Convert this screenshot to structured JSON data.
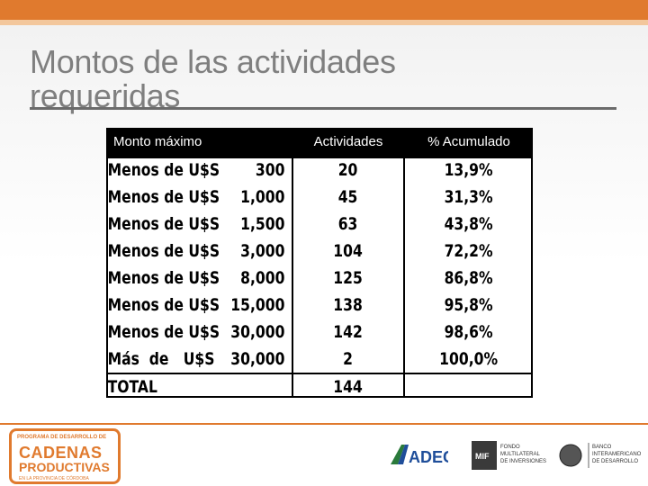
{
  "slide": {
    "title": "Montos de las actividades requeridas"
  },
  "table": {
    "headers": [
      "Monto máximo",
      "Actividades",
      "% Acumulado"
    ],
    "rows": [
      {
        "label": "Menos de U$S",
        "amount": "300",
        "actividades": "20",
        "acumulado": "13,9%"
      },
      {
        "label": "Menos de U$S",
        "amount": "1,000",
        "actividades": "45",
        "acumulado": "31,3%"
      },
      {
        "label": "Menos de U$S",
        "amount": "1,500",
        "actividades": "63",
        "acumulado": "43,8%"
      },
      {
        "label": "Menos de U$S",
        "amount": "3,000",
        "actividades": "104",
        "acumulado": "72,2%"
      },
      {
        "label": "Menos de U$S",
        "amount": "8,000",
        "actividades": "125",
        "acumulado": "86,8%"
      },
      {
        "label": "Menos de U$S",
        "amount": "15,000",
        "actividades": "138",
        "acumulado": "95,8%"
      },
      {
        "label": "Menos de U$S",
        "amount": "30,000",
        "actividades": "142",
        "acumulado": "98,6%"
      },
      {
        "label": "Más  de   U$S",
        "amount": "30,000",
        "actividades": "2",
        "acumulado": "100,0%"
      }
    ],
    "total": {
      "label": "TOTAL",
      "actividades": "144"
    }
  },
  "footer": {
    "cadenas_small": "PROGRAMA DE DESARROLLO DE",
    "cadenas_big1": "CADENAS",
    "cadenas_big2": "PRODUCTIVAS",
    "cadenas_small2": "EN LA PROVINCIA DE CÓRDOBA",
    "adec": "ADEC",
    "fomin_text": "FONDO MULTILATERAL DE INVERSIONES",
    "fomin_mark": "MIF",
    "bid_text": "BANCO INTERAMERICANO DE DESARROLLO"
  },
  "colors": {
    "accent_orange": "#e07a2e",
    "header_black": "#000000",
    "title_gray": "#7f7f7f"
  }
}
